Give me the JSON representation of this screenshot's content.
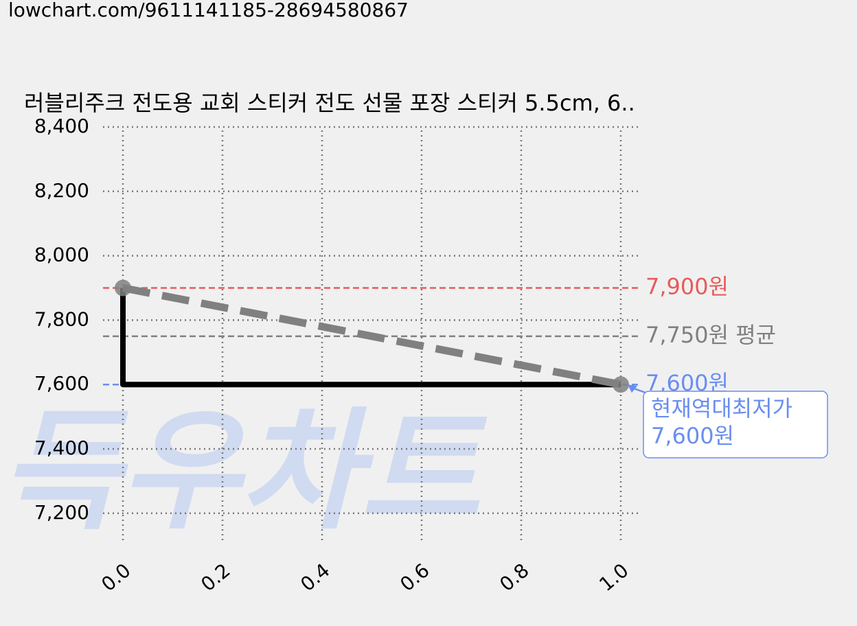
{
  "url": "lowchart.com/9611141185-28694580867",
  "chart_data": {
    "type": "line",
    "title": "러블리주크 전도용 교회 스티커 전도 선물 포장 스티커 5.5cm, 6..",
    "watermark": "득우차트",
    "xlim": [
      -0.04,
      1.04
    ],
    "ylim": [
      7110,
      8400
    ],
    "xticks": [
      {
        "value": 0,
        "label": "0.0"
      },
      {
        "value": 0.2,
        "label": "0.2"
      },
      {
        "value": 0.4,
        "label": "0.4"
      },
      {
        "value": 0.6,
        "label": "0.6"
      },
      {
        "value": 0.8,
        "label": "0.8"
      },
      {
        "value": 1,
        "label": "1.0"
      }
    ],
    "yticks": [
      {
        "value": 7200,
        "label": "7,200"
      },
      {
        "value": 7400,
        "label": "7,400"
      },
      {
        "value": 7600,
        "label": "7,600"
      },
      {
        "value": 7800,
        "label": "7,800"
      },
      {
        "value": 8000,
        "label": "8,000"
      },
      {
        "value": 8200,
        "label": "8,200"
      },
      {
        "value": 8400,
        "label": "8,400"
      }
    ],
    "grid": true,
    "series": [
      {
        "x": [
          0,
          0,
          1
        ],
        "values": [
          7900,
          7600,
          7600
        ],
        "color": "#000000",
        "style": "solid",
        "markers": false
      },
      {
        "x": [
          0,
          1
        ],
        "values": [
          7900,
          7600
        ],
        "color": "#808080",
        "style": "dashed",
        "markers": true
      }
    ],
    "hlines": [
      {
        "value": 7900,
        "label": "7,900원",
        "color": "#e85a5a"
      },
      {
        "value": 7750,
        "label": "7,750원 평균",
        "color": "#808080"
      },
      {
        "value": 7600,
        "label": "7,600원",
        "color": "#6a8ef0"
      }
    ],
    "annotation": {
      "x": 1,
      "y": 7600,
      "lines": [
        "현재역대최저가",
        "7,600원"
      ],
      "color": "#6a8ef0"
    }
  }
}
